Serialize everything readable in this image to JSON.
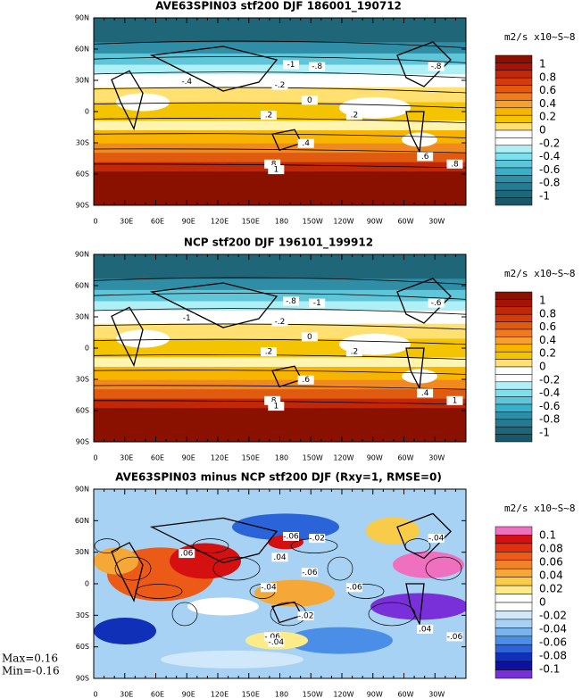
{
  "panels": [
    {
      "title": "AVE63SPIN03 stf200 DJF 186001_190712",
      "lat_labels": [
        "90N",
        "60N",
        "30N",
        "0",
        "30S",
        "60S",
        "90S"
      ],
      "lon_labels": [
        "0",
        "30E",
        "60E",
        "90E",
        "120E",
        "150E",
        "180",
        "150W",
        "120W",
        "90W",
        "60W",
        "30W"
      ],
      "unit": "m2/s x10~S~8",
      "colorbar_labels": [
        "1",
        "0.8",
        "0.6",
        "0.4",
        "0.2",
        "0",
        "-0.2",
        "-0.4",
        "-0.6",
        "-0.8",
        "-1"
      ],
      "contour_labels": [
        "-1",
        "-.8",
        "-.8",
        "-.4",
        "-.2",
        "0",
        ".2",
        ".2",
        ".4",
        ".8",
        "1",
        ".6",
        ".8"
      ]
    },
    {
      "title": "NCP stf200 DJF 196101_199912",
      "lat_labels": [
        "90N",
        "60N",
        "30N",
        "0",
        "30S",
        "60S",
        "90S"
      ],
      "lon_labels": [
        "0",
        "30E",
        "60E",
        "90E",
        "120E",
        "150E",
        "180",
        "150W",
        "120W",
        "90W",
        "60W",
        "30W"
      ],
      "unit": "m2/s x10~S~8",
      "colorbar_labels": [
        "1",
        "0.8",
        "0.6",
        "0.4",
        "0.2",
        "0",
        "-0.2",
        "-0.4",
        "-0.6",
        "-0.8",
        "-1"
      ],
      "contour_labels": [
        "-.8",
        "-1",
        "-.6",
        "-1",
        "-.2",
        "0",
        ".2",
        ".2",
        ".6",
        ".8",
        "1",
        ".4",
        "1"
      ]
    },
    {
      "title": "AVE63SPIN03 minus NCP stf200 DJF (Rxy=1, RMSE=0)",
      "lat_labels": [
        "90N",
        "60N",
        "30N",
        "0",
        "30S",
        "60S",
        "90S"
      ],
      "lon_labels": [
        "0",
        "30E",
        "60E",
        "90E",
        "120E",
        "150E",
        "180",
        "150W",
        "120W",
        "90W",
        "60W",
        "30W"
      ],
      "unit": "m2/s x10~S~8",
      "colorbar_labels": [
        "0.1",
        "0.08",
        "0.06",
        "0.04",
        "0.02",
        "0",
        "-0.02",
        "-0.04",
        "-0.06",
        "-0.08",
        "-0.1"
      ],
      "contour_labels": [
        "-.06",
        "-.02",
        "-.04",
        ".06",
        ".04",
        "-.06",
        "-.04",
        "-.06",
        "-.02",
        "-.06",
        "-.04",
        ".04",
        "-.06"
      ]
    }
  ],
  "stats": {
    "max": "Max=0.16",
    "min": "Min=-0.16"
  }
}
